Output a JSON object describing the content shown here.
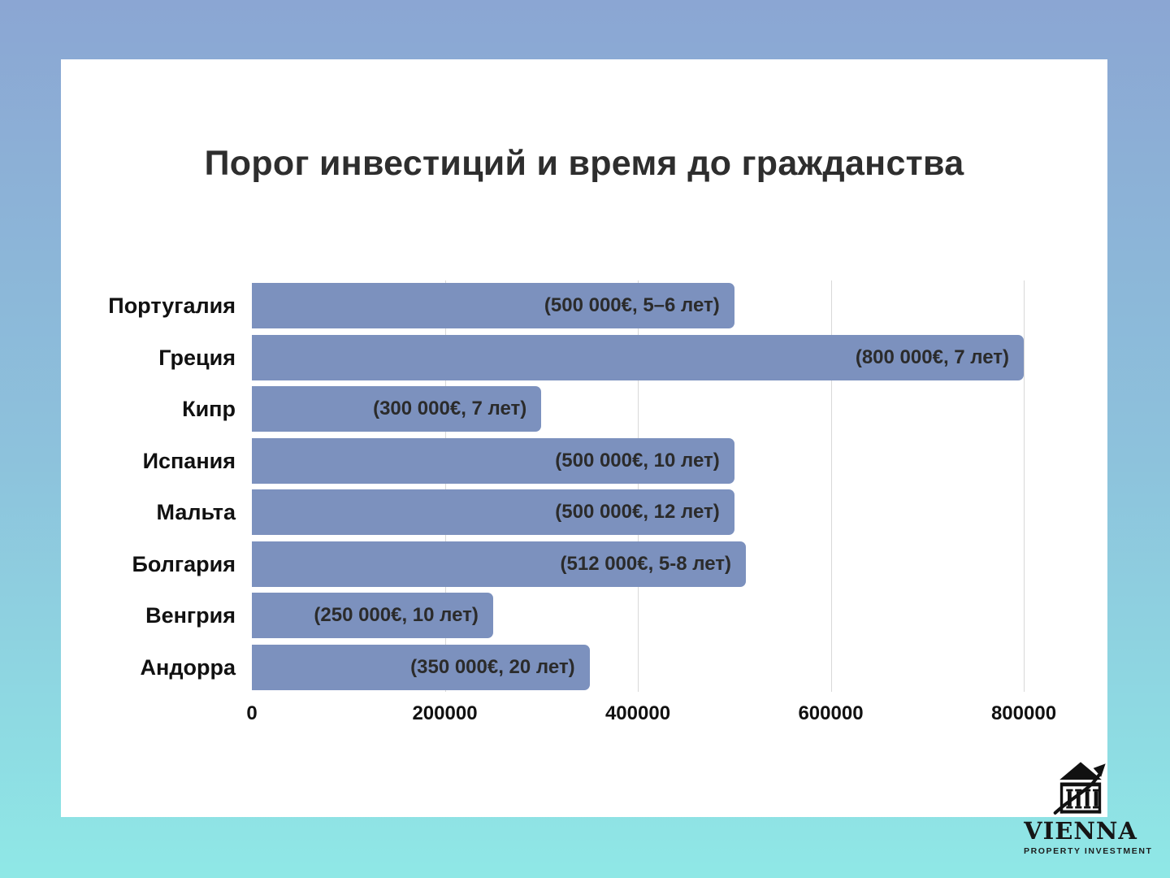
{
  "chart_data": {
    "type": "bar",
    "orientation": "horizontal",
    "title": "Порог инвестиций и время до гражданства",
    "categories": [
      "Португалия",
      "Греция",
      "Кипр",
      "Испания",
      "Мальта",
      "Болгария",
      "Венгрия",
      "Андорра"
    ],
    "values": [
      500000,
      800000,
      300000,
      500000,
      500000,
      512000,
      250000,
      350000
    ],
    "bar_labels": [
      "(500 000€, 5–6 лет)",
      "(800 000€, 7 лет)",
      "(300 000€, 7 лет)",
      "(500 000€, 10 лет)",
      "(500 000€, 12 лет)",
      "(512 000€, 5-8 лет)",
      "(250 000€, 10 лет)",
      "(350 000€, 20 лет)"
    ],
    "x_ticks": [
      0,
      200000,
      400000,
      600000,
      800000
    ],
    "x_tick_labels": [
      "0",
      "200000",
      "400000",
      "600000",
      "800000"
    ],
    "xlim": [
      0,
      800000
    ],
    "grid": true,
    "legend": false,
    "bar_color": "#7C91BE",
    "gridline_color": "#d8d8d8"
  },
  "logo": {
    "name": "VIENNA",
    "subtitle": "PROPERTY INVESTMENT",
    "icon": "bank-building-with-growth-arrow"
  },
  "colors": {
    "background_top": "#8BA6D3",
    "background_bottom": "#8FE8E6",
    "card": "#ffffff",
    "title_text": "#2e2e2e",
    "label_text": "#111111"
  }
}
